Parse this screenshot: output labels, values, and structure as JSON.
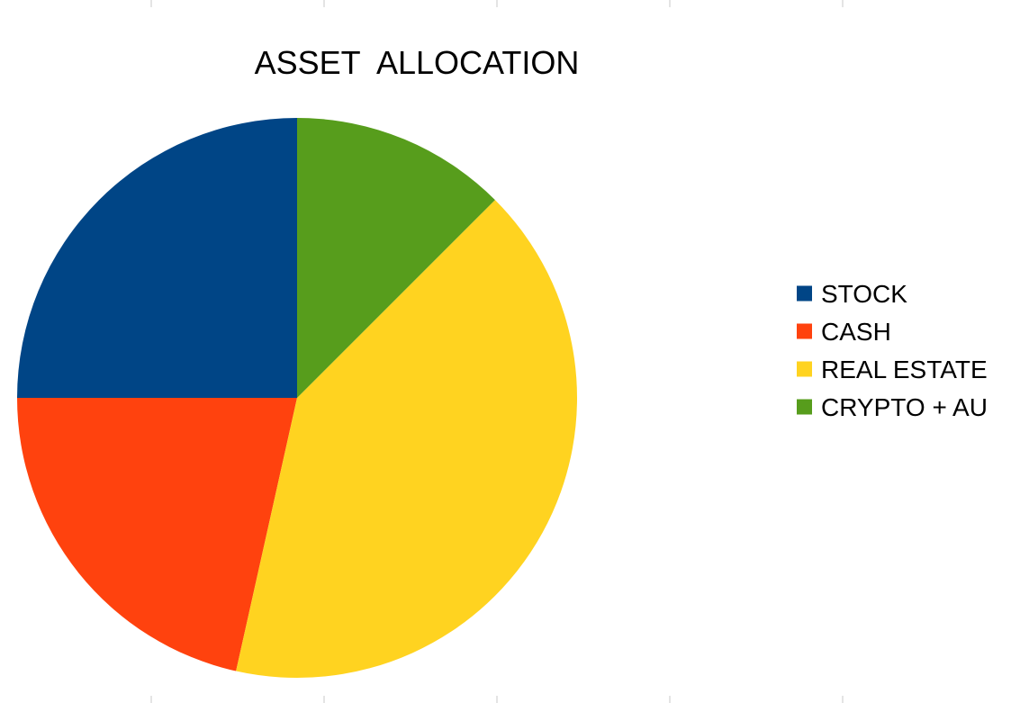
{
  "chart_data": {
    "type": "pie",
    "title": "ASSET  ALLOCATION",
    "categories": [
      "STOCK",
      "CASH",
      "REAL ESTATE",
      "CRYPTO + AU"
    ],
    "values": [
      25,
      21.5,
      41,
      12.5
    ],
    "colors": [
      "#004586",
      "#ff420e",
      "#ffd320",
      "#579d1c"
    ],
    "start_angle_deg": -90,
    "direction": "counterclockwise",
    "legend_position": "right"
  }
}
